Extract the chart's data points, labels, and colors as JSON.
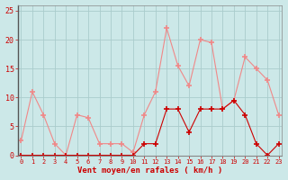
{
  "hours": [
    0,
    1,
    2,
    3,
    4,
    5,
    6,
    7,
    8,
    9,
    10,
    11,
    12,
    13,
    14,
    15,
    16,
    17,
    18,
    19,
    20,
    21,
    22,
    23
  ],
  "rafales": [
    2.5,
    11,
    7,
    2,
    0,
    7,
    6.5,
    2,
    2,
    2,
    0.5,
    7,
    11,
    22,
    15.5,
    12,
    20,
    19.5,
    8,
    9.5,
    17,
    15,
    13,
    7
  ],
  "moyen": [
    0,
    0,
    0,
    0,
    0,
    0,
    0,
    0,
    0,
    0,
    0,
    2,
    2,
    8,
    8,
    4,
    8,
    8,
    8,
    9.5,
    7,
    2,
    0,
    2
  ],
  "bg_color": "#cce8e8",
  "grid_color": "#aacccc",
  "line_color_rafales": "#f08888",
  "line_color_moyen": "#cc0000",
  "xlabel": "Vent moyen/en rafales ( km/h )",
  "xlabel_color": "#cc0000",
  "tick_color": "#cc0000",
  "ylim": [
    0,
    26
  ],
  "yticks": [
    0,
    5,
    10,
    15,
    20,
    25
  ],
  "spine_color": "#888888",
  "left_spine_color": "#555555"
}
